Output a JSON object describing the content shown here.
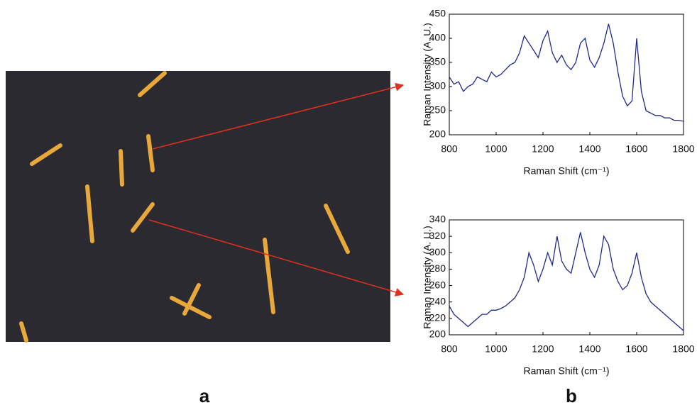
{
  "panel_labels": [
    "a",
    "b"
  ],
  "chart_data": [
    {
      "type": "line",
      "x_label": "Raman Shift (cm⁻¹)",
      "y_label": "Raman Intensity (A. U.)",
      "color": "#1f2a8a",
      "x": [
        800,
        820,
        840,
        860,
        880,
        900,
        920,
        940,
        960,
        980,
        1000,
        1020,
        1040,
        1060,
        1080,
        1100,
        1120,
        1140,
        1160,
        1180,
        1200,
        1220,
        1240,
        1260,
        1280,
        1300,
        1320,
        1340,
        1360,
        1380,
        1400,
        1420,
        1440,
        1460,
        1480,
        1500,
        1520,
        1540,
        1560,
        1580,
        1600,
        1620,
        1640,
        1660,
        1680,
        1700,
        1720,
        1740,
        1760,
        1780,
        1800
      ],
      "values": [
        320,
        305,
        310,
        290,
        300,
        305,
        320,
        315,
        310,
        330,
        320,
        325,
        335,
        345,
        350,
        370,
        405,
        390,
        375,
        360,
        395,
        415,
        370,
        350,
        365,
        345,
        335,
        350,
        390,
        400,
        355,
        340,
        360,
        390,
        430,
        390,
        330,
        280,
        260,
        270,
        400,
        290,
        250,
        245,
        240,
        240,
        235,
        235,
        230,
        230,
        228
      ],
      "xlim": [
        800,
        1800
      ],
      "xticks": [
        800,
        1000,
        1200,
        1400,
        1600,
        1800
      ],
      "ylim": [
        200,
        450
      ],
      "yticks": [
        200,
        250,
        300,
        350,
        400,
        450
      ]
    },
    {
      "type": "line",
      "x_label": "Raman Shift (cm⁻¹)",
      "y_label": "Raman Intensity (A. U.)",
      "color": "#1f2a8a",
      "x": [
        800,
        820,
        840,
        860,
        880,
        900,
        920,
        940,
        960,
        980,
        1000,
        1020,
        1040,
        1060,
        1080,
        1100,
        1120,
        1140,
        1160,
        1180,
        1200,
        1220,
        1240,
        1260,
        1280,
        1300,
        1320,
        1340,
        1360,
        1380,
        1400,
        1420,
        1440,
        1460,
        1480,
        1500,
        1520,
        1540,
        1560,
        1580,
        1600,
        1620,
        1640,
        1660,
        1680,
        1700,
        1720,
        1740,
        1760,
        1780,
        1800
      ],
      "values": [
        235,
        225,
        220,
        215,
        210,
        215,
        220,
        225,
        225,
        230,
        230,
        232,
        235,
        240,
        245,
        255,
        270,
        300,
        285,
        265,
        280,
        300,
        285,
        320,
        290,
        280,
        275,
        300,
        325,
        300,
        280,
        270,
        285,
        320,
        310,
        280,
        265,
        255,
        260,
        275,
        300,
        270,
        250,
        240,
        235,
        230,
        225,
        220,
        215,
        210,
        205
      ],
      "xlim": [
        800,
        1800
      ],
      "xticks": [
        800,
        1000,
        1200,
        1400,
        1600,
        1800
      ],
      "ylim": [
        200,
        340
      ],
      "yticks": [
        200,
        220,
        240,
        260,
        280,
        300,
        320,
        340
      ]
    }
  ]
}
